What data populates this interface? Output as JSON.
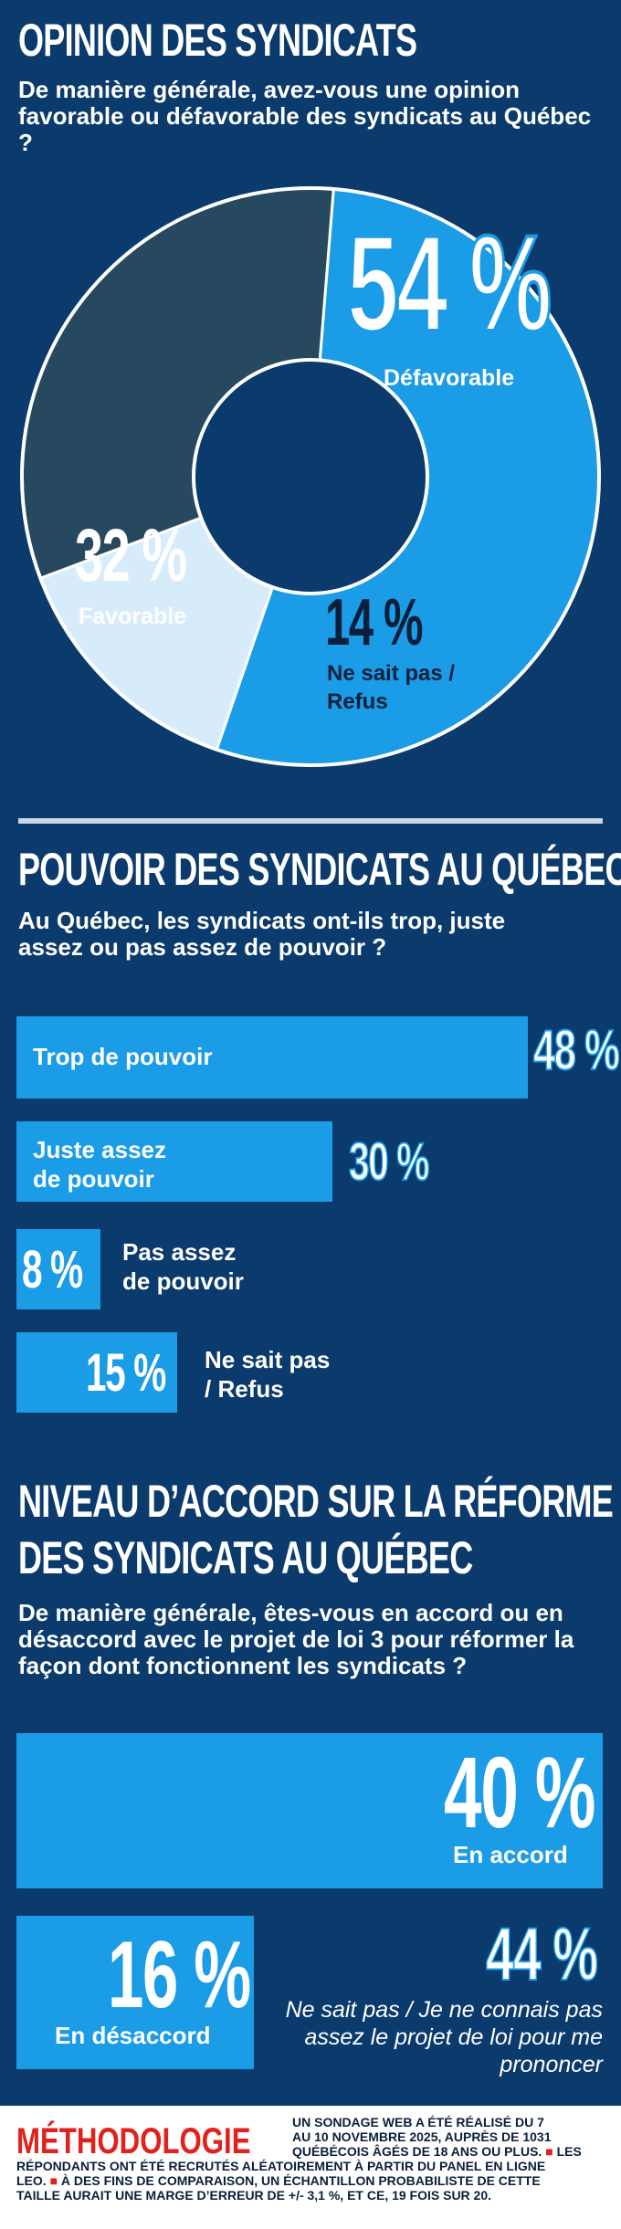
{
  "sections": [
    {
      "title": "OPINION DES SYNDICATS",
      "question": "De manière générale, avez-vous une opinion favorable ou défavorable des syndicats au Québec ?"
    },
    {
      "title": "POUVOIR DES SYNDICATS AU QUÉBEC",
      "question": "Au Québec, les syndicats ont-ils trop, juste assez ou pas assez de pouvoir ?"
    },
    {
      "title_line1": "NIVEAU D’ACCORD SUR LA RÉFORME",
      "title_line2": "DES SYNDICATS AU QUÉBEC",
      "question": "De manière générale, êtes-vous en accord ou en désaccord avec le projet de loi 3 pour réformer la façon dont fonctionnent les syndicats ?"
    }
  ],
  "colors": {
    "background": "#0b3a6d",
    "bright_blue": "#1b9ce6",
    "dark_slate": "#27495f",
    "light_blue": "#d7ecfb",
    "red": "#e2211c"
  },
  "chart_data": [
    {
      "type": "pie",
      "slices": [
        {
          "label": "Défavorable",
          "value": 54,
          "value_text": "54 %"
        },
        {
          "label": "Ne sait pas / Refus",
          "value": 14,
          "value_text": "14 %"
        },
        {
          "label": "Favorable",
          "value": 32,
          "value_text": "32 %"
        }
      ]
    },
    {
      "type": "bar",
      "categories": [
        "Trop de pouvoir",
        "Juste assez de pouvoir",
        "Pas assez de pouvoir",
        "Ne sait pas / Refus"
      ],
      "values": [
        48,
        30,
        8,
        15
      ],
      "value_texts": [
        "48 %",
        "30 %",
        "8 %",
        "15 %"
      ]
    },
    {
      "type": "bar",
      "categories": [
        "En accord",
        "En désaccord",
        "Ne sait pas / Je ne connais pas assez le projet de loi pour me prononcer"
      ],
      "values": [
        40,
        16,
        44
      ],
      "value_texts": [
        "40 %",
        "16 %",
        "44 %"
      ]
    }
  ],
  "methodology": {
    "heading": "MÉTHODOLOGIE",
    "text_line1": "UN SONDAGE WEB A ÉTÉ RÉALISÉ DU 7",
    "text_line2": "AU 10 NOVEMBRE 2025, AUPRÈS DE 1031",
    "text_line3": "QUÉBÉCOIS ÂGÉS DE 18 ANS OU PLUS.",
    "text_line3b": "LES",
    "text_line4": "RÉPONDANTS ONT ÉTÉ RECRUTÉS ALÉATOIREMENT À PARTIR DU PANEL EN LIGNE",
    "text_line5a": "LEO.",
    "text_line5b": "À DES FINS DE COMPARAISON, UN ÉCHANTILLON PROBABILISTE DE CETTE",
    "text_line6": "TAILLE AURAIT UNE MARGE D’ERREUR DE +/- 3,1 %, ET CE, 19 FOIS SUR 20."
  }
}
